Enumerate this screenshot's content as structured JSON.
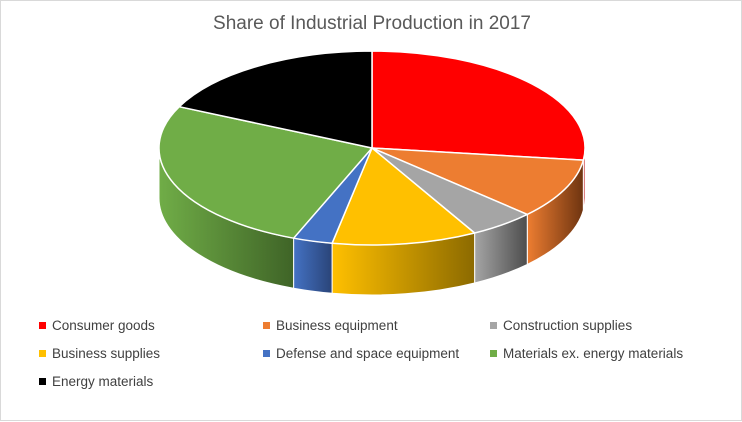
{
  "chart_data": {
    "type": "pie",
    "title": "Share of Industrial Production in 2017",
    "start_angle_deg": 90,
    "direction": "clockwise",
    "legend_position": "bottom",
    "slices": [
      {
        "label": "Consumer goods",
        "value": 27,
        "color": "#ff0000",
        "side_color": "#8b0000"
      },
      {
        "label": "Business equipment",
        "value": 10,
        "color": "#ed7d31",
        "side_color": "#6e3410"
      },
      {
        "label": "Construction supplies",
        "value": 5,
        "color": "#a5a5a5",
        "side_color": "#4d4d4d"
      },
      {
        "label": "Business supplies",
        "value": 11,
        "color": "#ffc000",
        "side_color": "#8c6a00"
      },
      {
        "label": "Defense and space equipment",
        "value": 3,
        "color": "#4472c4",
        "side_color": "#2a4478"
      },
      {
        "label": "Materials ex. energy materials",
        "value": 26,
        "color": "#70ad47",
        "side_color": "#3f6427"
      },
      {
        "label": "Energy materials",
        "value": 18,
        "color": "#000000",
        "side_color": "#000000"
      }
    ]
  }
}
